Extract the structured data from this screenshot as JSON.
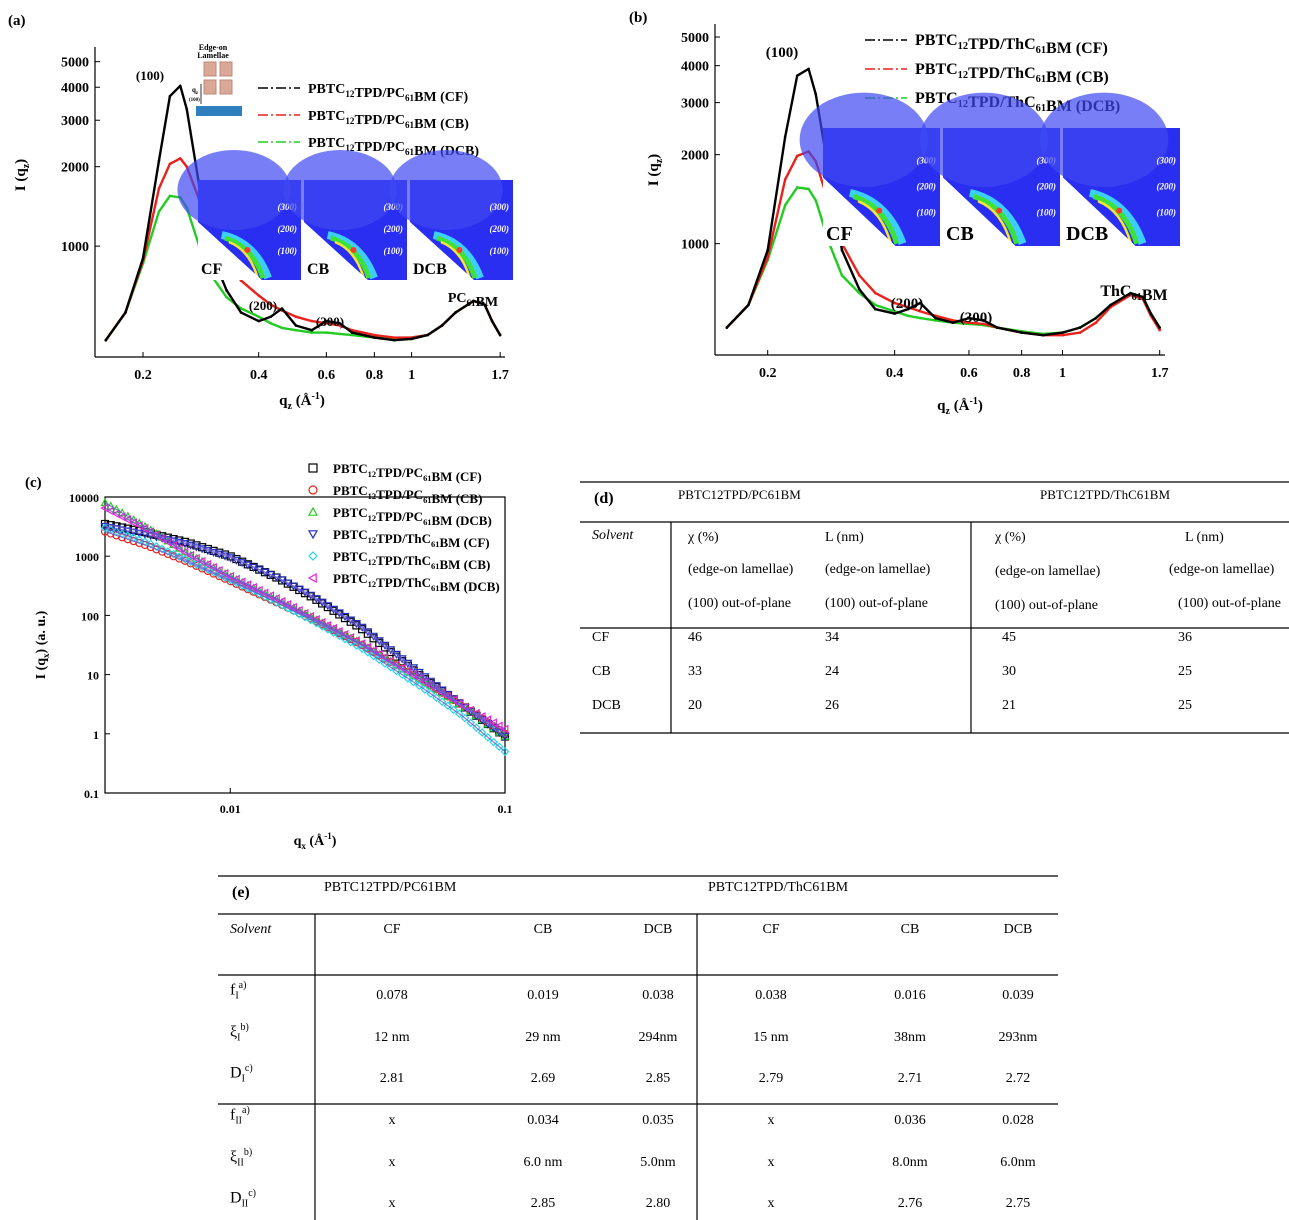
{
  "panel_labels": {
    "a": "(a)",
    "b": "(b)",
    "c": "(c)",
    "d": "(d)",
    "e": "(e)"
  },
  "inset_labels": {
    "edge_on": "Edge-on",
    "lamellae": "Lamellae",
    "qz": "q",
    "qz_sub": "z",
    "hkl": "(100)"
  },
  "saxs_image_labels": [
    "CF",
    "CB",
    "DCB"
  ],
  "chart_data": [
    {
      "id": "a",
      "type": "line",
      "title": "",
      "xlabel": "q_z (Å^-1)",
      "ylabel": "I (q_z)",
      "x_scale": "log",
      "y_scale": "log",
      "xlim": [
        0.15,
        1.75
      ],
      "ylim": [
        380,
        5300
      ],
      "x_ticks": [
        0.2,
        0.4,
        0.6,
        0.8,
        1,
        1.7
      ],
      "x_tick_labels": [
        "0.2",
        "0.4",
        "0.6",
        "0.8",
        "1",
        "1.7"
      ],
      "y_ticks": [
        1000,
        2000,
        3000,
        4000,
        5000
      ],
      "y_tick_labels": [
        "1000",
        "2000",
        "3000",
        "4000",
        "5000"
      ],
      "annotations": [
        "(100)",
        "(200)",
        "(300)",
        "PC61BM"
      ],
      "legend_position": "top-right",
      "series": [
        {
          "name": "PBTC12TPD/PC61BM (CF)",
          "color": "#000000",
          "x": [
            0.16,
            0.18,
            0.2,
            0.22,
            0.235,
            0.25,
            0.26,
            0.28,
            0.3,
            0.33,
            0.36,
            0.4,
            0.43,
            0.46,
            0.5,
            0.55,
            0.6,
            0.65,
            0.7,
            0.8,
            0.9,
            1.0,
            1.1,
            1.2,
            1.3,
            1.45,
            1.55,
            1.62,
            1.7
          ],
          "y": [
            440,
            560,
            900,
            2100,
            3700,
            4050,
            3300,
            1700,
            950,
            680,
            560,
            520,
            540,
            580,
            500,
            480,
            520,
            510,
            470,
            450,
            440,
            445,
            460,
            500,
            560,
            620,
            600,
            520,
            460
          ]
        },
        {
          "name": "PBTC12TPD/PC61BM (CB)",
          "color": "#e8211c",
          "x": [
            0.16,
            0.18,
            0.2,
            0.22,
            0.235,
            0.25,
            0.26,
            0.28,
            0.3,
            0.33,
            0.36,
            0.4,
            0.43,
            0.46,
            0.5,
            0.55,
            0.6,
            0.65,
            0.7,
            0.8,
            0.9,
            1.0,
            1.1,
            1.2,
            1.3,
            1.45,
            1.55,
            1.62,
            1.7
          ],
          "y": [
            440,
            560,
            880,
            1650,
            2050,
            2150,
            2000,
            1500,
            1100,
            870,
            740,
            650,
            600,
            570,
            540,
            520,
            510,
            500,
            480,
            460,
            450,
            450,
            460,
            500,
            560,
            620,
            600,
            520,
            460
          ]
        },
        {
          "name": "PBTC12TPD/PC61BM (DCB)",
          "color": "#22cc22",
          "x": [
            0.16,
            0.18,
            0.2,
            0.22,
            0.235,
            0.25,
            0.26,
            0.28,
            0.3,
            0.33,
            0.36,
            0.4,
            0.43,
            0.46,
            0.5,
            0.55,
            0.6,
            0.65,
            0.7,
            0.8,
            0.9,
            1.0,
            1.1,
            1.2,
            1.3,
            1.45,
            1.55,
            1.62,
            1.7
          ],
          "y": [
            440,
            560,
            860,
            1350,
            1550,
            1530,
            1400,
            1000,
            780,
            640,
            580,
            540,
            510,
            490,
            480,
            470,
            470,
            465,
            460,
            450,
            445,
            450,
            460,
            500,
            560,
            620,
            600,
            520,
            460
          ]
        }
      ]
    },
    {
      "id": "b",
      "type": "line",
      "title": "",
      "xlabel": "q_z (Å^-1)",
      "ylabel": "I (q_z)",
      "x_scale": "log",
      "y_scale": "log",
      "xlim": [
        0.15,
        1.75
      ],
      "ylim": [
        420,
        5200
      ],
      "x_ticks": [
        0.2,
        0.4,
        0.6,
        0.8,
        1,
        1.7
      ],
      "x_tick_labels": [
        "0.2",
        "0.4",
        "0.6",
        "0.8",
        "1",
        "1.7"
      ],
      "y_ticks": [
        1000,
        2000,
        3000,
        4000,
        5000
      ],
      "y_tick_labels": [
        "1000",
        "2000",
        "3000",
        "4000",
        "5000"
      ],
      "annotations": [
        "(100)",
        "(200)",
        "(300)",
        "ThC61BM"
      ],
      "legend_position": "top-right",
      "series": [
        {
          "name": "PBTC12TPD/ThC61BM (CF)",
          "color": "#000000",
          "x": [
            0.16,
            0.18,
            0.2,
            0.22,
            0.235,
            0.25,
            0.26,
            0.28,
            0.3,
            0.33,
            0.36,
            0.4,
            0.43,
            0.46,
            0.5,
            0.55,
            0.6,
            0.65,
            0.7,
            0.8,
            0.9,
            1.0,
            1.1,
            1.2,
            1.3,
            1.45,
            1.55,
            1.62,
            1.7
          ],
          "y": [
            520,
            620,
            950,
            2300,
            3700,
            3900,
            3200,
            1700,
            950,
            700,
            600,
            580,
            600,
            630,
            560,
            540,
            560,
            550,
            520,
            500,
            490,
            500,
            520,
            560,
            620,
            680,
            660,
            580,
            520
          ]
        },
        {
          "name": "PBTC12TPD/ThC61BM (CB)",
          "color": "#e8211c",
          "x": [
            0.16,
            0.18,
            0.2,
            0.22,
            0.235,
            0.25,
            0.26,
            0.28,
            0.3,
            0.33,
            0.36,
            0.4,
            0.43,
            0.46,
            0.5,
            0.55,
            0.6,
            0.65,
            0.7,
            0.8,
            0.9,
            1.0,
            1.1,
            1.2,
            1.3,
            1.45,
            1.55,
            1.62,
            1.7
          ],
          "y": [
            520,
            620,
            900,
            1650,
            1980,
            2050,
            1900,
            1350,
            1000,
            780,
            680,
            630,
            610,
            590,
            570,
            550,
            540,
            535,
            520,
            500,
            490,
            490,
            500,
            540,
            610,
            670,
            650,
            570,
            510
          ]
        },
        {
          "name": "PBTC12TPD/ThC61BM (DCB)",
          "color": "#22cc22",
          "x": [
            0.16,
            0.18,
            0.2,
            0.22,
            0.235,
            0.25,
            0.26,
            0.28,
            0.3,
            0.33,
            0.36,
            0.4,
            0.43,
            0.46,
            0.5,
            0.55,
            0.6,
            0.65,
            0.7,
            0.8,
            0.9,
            1.0,
            1.1,
            1.2,
            1.3,
            1.45,
            1.55,
            1.62,
            1.7
          ],
          "y": [
            520,
            620,
            880,
            1350,
            1550,
            1530,
            1400,
            1000,
            780,
            680,
            620,
            590,
            570,
            560,
            550,
            540,
            535,
            530,
            520,
            505,
            495,
            500,
            520,
            560,
            620,
            680,
            660,
            580,
            520
          ]
        }
      ]
    },
    {
      "id": "c",
      "type": "scatter",
      "title": "",
      "xlabel": "q_x (Å^-1)",
      "ylabel": "I (q_x) (a. u.)",
      "x_scale": "log",
      "y_scale": "log",
      "xlim": [
        0.0035,
        0.1
      ],
      "ylim": [
        0.1,
        10000
      ],
      "x_ticks": [
        0.01,
        0.1
      ],
      "x_tick_labels": [
        "0.01",
        "0.1"
      ],
      "y_ticks": [
        0.1,
        1,
        10,
        100,
        1000,
        10000
      ],
      "y_tick_labels": [
        "0.1",
        "1",
        "10",
        "100",
        "1000",
        "10000"
      ],
      "legend_position": "top-right",
      "series": [
        {
          "name": "PBTC12TPD/PC61BM (CF)",
          "marker": "square",
          "color": "#000000",
          "x": [
            0.0035,
            0.005,
            0.007,
            0.01,
            0.015,
            0.02,
            0.03,
            0.05,
            0.07,
            0.1
          ],
          "y": [
            3500,
            2500,
            1700,
            1000,
            420,
            200,
            60,
            9,
            3,
            0.9
          ]
        },
        {
          "name": "PBTC12TPD/PC61BM (CB)",
          "marker": "circle",
          "color": "#e8211c",
          "x": [
            0.0035,
            0.005,
            0.007,
            0.01,
            0.015,
            0.02,
            0.03,
            0.05,
            0.07,
            0.1
          ],
          "y": [
            2600,
            1500,
            800,
            380,
            160,
            85,
            32,
            8,
            3,
            1
          ]
        },
        {
          "name": "PBTC12TPD/PC61BM (DCB)",
          "marker": "triangle-up",
          "color": "#22cc22",
          "x": [
            0.0035,
            0.005,
            0.007,
            0.01,
            0.015,
            0.02,
            0.03,
            0.05,
            0.07,
            0.1
          ],
          "y": [
            8000,
            3000,
            1100,
            450,
            180,
            90,
            33,
            8,
            3,
            0.9
          ]
        },
        {
          "name": "PBTC12TPD/ThC61BM (CF)",
          "marker": "triangle-down",
          "color": "#1f2cb8",
          "x": [
            0.0035,
            0.005,
            0.007,
            0.01,
            0.015,
            0.02,
            0.03,
            0.05,
            0.07,
            0.1
          ],
          "y": [
            3200,
            2300,
            1600,
            950,
            430,
            210,
            65,
            10,
            3,
            0.9
          ]
        },
        {
          "name": "PBTC12TPD/ThC61BM (CB)",
          "marker": "diamond",
          "color": "#22d4e8",
          "x": [
            0.0035,
            0.005,
            0.007,
            0.01,
            0.015,
            0.02,
            0.03,
            0.05,
            0.07,
            0.1
          ],
          "y": [
            3000,
            1700,
            850,
            400,
            160,
            80,
            28,
            6,
            2,
            0.5
          ]
        },
        {
          "name": "PBTC12TPD/ThC61BM (DCB)",
          "marker": "triangle-left",
          "color": "#e822d4",
          "x": [
            0.0035,
            0.005,
            0.007,
            0.01,
            0.015,
            0.02,
            0.03,
            0.05,
            0.07,
            0.1
          ],
          "y": [
            6500,
            2800,
            1100,
            460,
            185,
            92,
            34,
            8,
            3,
            1.2
          ]
        }
      ]
    }
  ],
  "table_d": {
    "label": "(d)",
    "group1": "PBTC12TPD/PC61BM",
    "group2": "PBTC12TPD/ThC61BM",
    "solvent_header": "Solvent",
    "col_chi": "χ (%)",
    "col_L": "L (nm)",
    "sub1": "(edge-on lamellae)",
    "sub2": "(100) out-of-plane",
    "rows": [
      {
        "solvent": "CF",
        "v": [
          "46",
          "34",
          "45",
          "36"
        ]
      },
      {
        "solvent": "CB",
        "v": [
          "33",
          "24",
          "30",
          "25"
        ]
      },
      {
        "solvent": "DCB",
        "v": [
          "20",
          "26",
          "21",
          "25"
        ]
      }
    ]
  },
  "table_e": {
    "label": "(e)",
    "group1": "PBTC12TPD/PC61BM",
    "group2": "PBTC12TPD/ThC61BM",
    "solvent_header": "Solvent",
    "cols": [
      "CF",
      "CB",
      "DCB",
      "CF",
      "CB",
      "DCB"
    ],
    "rows": [
      {
        "sym": "f",
        "sub": "I",
        "sup": "a)",
        "v": [
          "0.078",
          "0.019",
          "0.038",
          "0.038",
          "0.016",
          "0.039"
        ]
      },
      {
        "sym": "ξ",
        "sub": "I",
        "sup": "b)",
        "v": [
          "12 nm",
          "29 nm",
          "294nm",
          "15 nm",
          "38nm",
          "293nm"
        ]
      },
      {
        "sym": "D",
        "sub": "I",
        "sup": "c)",
        "v": [
          "2.81",
          "2.69",
          "2.85",
          "2.79",
          "2.71",
          "2.72"
        ]
      },
      {
        "sym": "f",
        "sub": "II",
        "sup": "a)",
        "v": [
          "x",
          "0.034",
          "0.035",
          "x",
          "0.036",
          "0.028"
        ]
      },
      {
        "sym": "ξ",
        "sub": "II",
        "sup": "b)",
        "v": [
          "x",
          "6.0 nm",
          "5.0nm",
          "x",
          "8.0nm",
          "6.0nm"
        ]
      },
      {
        "sym": "D",
        "sub": "II",
        "sup": "c)",
        "v": [
          "x",
          "2.85",
          "2.80",
          "x",
          "2.76",
          "2.75"
        ]
      }
    ]
  }
}
